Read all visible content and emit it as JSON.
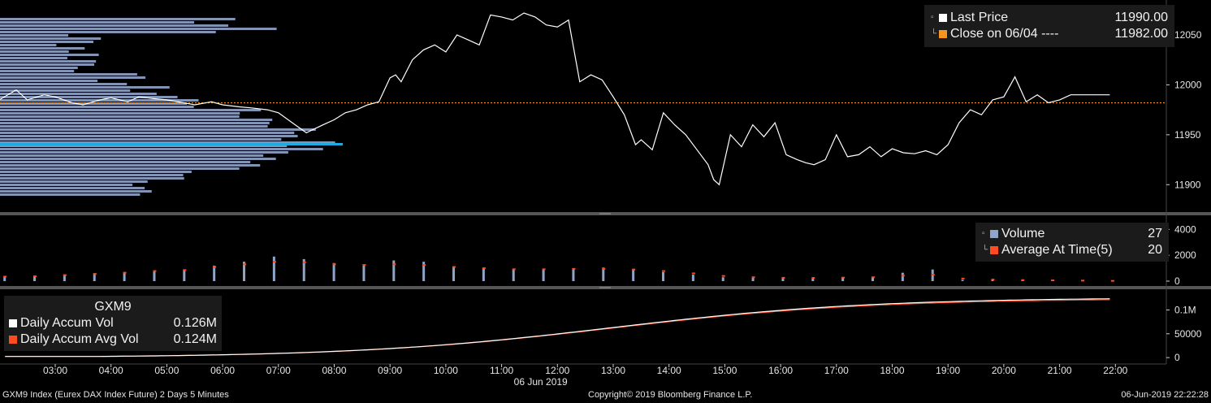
{
  "footer": {
    "left": "GXM9 Index (Eurex DAX Index Future) 2 Days 5 Minutes",
    "center": "Copyright© 2019 Bloomberg Finance L.P.",
    "right": "06-Jun-2019 22:22:28"
  },
  "legend_price": {
    "last_label": "Last Price",
    "last_value": "11990.00",
    "close_label": "Close on 06/04 ---- ",
    "close_value": "11982.00"
  },
  "legend_volume": {
    "vol_label": "Volume",
    "vol_value": "27",
    "avg_label": "Average At Time(5)",
    "avg_value": "20"
  },
  "legend_accum": {
    "title": "GXM9",
    "vol_label": "Daily Accum Vol",
    "vol_value": "0.126M",
    "avg_label": "Daily Accum Avg Vol",
    "avg_value": "0.124M"
  },
  "colors": {
    "last": "#ffffff",
    "close": "#f7941d",
    "volume": "#8ea4c8",
    "avg": "#ff4b1f",
    "profile": "#8a9bbd",
    "poc": "#1fa9e1"
  },
  "chart_data": [
    {
      "type": "line",
      "panel": "price",
      "ylim": [
        11875,
        12085
      ],
      "yticks": [
        11900,
        11950,
        12000,
        12050
      ],
      "close_reference": 11982,
      "x_tick_labels": [
        "03:00",
        "04:00",
        "05:00",
        "06:00",
        "07:00",
        "08:00",
        "09:00",
        "10:00",
        "11:00",
        "12:00",
        "13:00",
        "14:00",
        "15:00",
        "16:00",
        "17:00",
        "18:00",
        "19:00",
        "20:00",
        "21:00",
        "22:00"
      ],
      "date_label": "06 Jun 2019",
      "series": [
        {
          "name": "Last Price",
          "x": [
            2.0,
            2.3,
            2.5,
            2.8,
            3.0,
            3.3,
            3.5,
            3.8,
            4.0,
            4.3,
            4.5,
            4.8,
            5.0,
            5.3,
            5.5,
            5.8,
            6.0,
            6.3,
            6.5,
            6.8,
            7.0,
            7.3,
            7.5,
            7.8,
            8.0,
            8.2,
            8.4,
            8.6,
            8.8,
            9.0,
            9.1,
            9.2,
            9.4,
            9.6,
            9.8,
            10.0,
            10.2,
            10.4,
            10.6,
            10.8,
            11.0,
            11.2,
            11.4,
            11.6,
            11.8,
            12.0,
            12.2,
            12.4,
            12.6,
            12.8,
            13.0,
            13.2,
            13.4,
            13.5,
            13.7,
            13.9,
            14.1,
            14.3,
            14.5,
            14.7,
            14.8,
            14.9,
            15.1,
            15.3,
            15.5,
            15.7,
            15.9,
            16.1,
            16.3,
            16.45,
            16.6,
            16.8,
            17.0,
            17.2,
            17.4,
            17.6,
            17.8,
            18.0,
            18.2,
            18.4,
            18.6,
            18.8,
            19.0,
            19.2,
            19.4,
            19.6,
            19.8,
            20.0,
            20.2,
            20.4,
            20.6,
            20.8,
            21.0,
            21.2,
            21.4,
            21.6,
            21.75,
            21.9
          ],
          "values": [
            11985,
            11995,
            11985,
            11990,
            11988,
            11982,
            11980,
            11985,
            11987,
            11983,
            11988,
            11986,
            11985,
            11982,
            11980,
            11983,
            11980,
            11978,
            11977,
            11975,
            11972,
            11960,
            11952,
            11960,
            11965,
            11972,
            11975,
            11980,
            11983,
            12007,
            12010,
            12003,
            12025,
            12035,
            12040,
            12033,
            12050,
            12045,
            12040,
            12070,
            12068,
            12065,
            12072,
            12068,
            12060,
            12058,
            12065,
            12003,
            12010,
            12005,
            11988,
            11970,
            11940,
            11945,
            11935,
            11972,
            11960,
            11950,
            11935,
            11920,
            11905,
            11900,
            11950,
            11938,
            11960,
            11948,
            11962,
            11930,
            11925,
            11922,
            11920,
            11925,
            11950,
            11928,
            11930,
            11938,
            11928,
            11936,
            11932,
            11931,
            11934,
            11930,
            11940,
            11962,
            11975,
            11970,
            11985,
            11988,
            12008,
            11983,
            11990,
            11982,
            11985,
            11990,
            11990,
            11990,
            11990,
            11990
          ]
        },
        {
          "name": "Close on 06/04",
          "values": [
            11982
          ]
        }
      ]
    },
    {
      "type": "bar",
      "panel": "volume",
      "ylim": [
        0,
        4900
      ],
      "yticks": [
        0,
        2000,
        4000
      ],
      "series": [
        {
          "name": "Volume",
          "x_range": [
            2.1,
            21.95
          ],
          "values": [
            350,
            420,
            520,
            600,
            700,
            800,
            900,
            1200,
            1500,
            1900,
            1700,
            1400,
            1300,
            1600,
            1500,
            1100,
            1000,
            900,
            900,
            1000,
            1050,
            900,
            700,
            500,
            300,
            250,
            230,
            230,
            300,
            300,
            650,
            900,
            100,
            80,
            60,
            55,
            40,
            27
          ]
        },
        {
          "name": "Average At Time(5)",
          "x_range": [
            2.1,
            21.95
          ],
          "values": [
            350,
            380,
            460,
            560,
            650,
            780,
            860,
            1100,
            1300,
            1500,
            1450,
            1300,
            1250,
            1300,
            1250,
            1100,
            1000,
            920,
            920,
            950,
            950,
            900,
            780,
            600,
            400,
            300,
            260,
            250,
            270,
            300,
            420,
            500,
            200,
            120,
            80,
            60,
            40,
            20
          ]
        }
      ]
    },
    {
      "type": "line",
      "panel": "accumulated",
      "ylim": [
        -10000,
        140000
      ],
      "yticks": [
        "0",
        "50000",
        "0.1M"
      ],
      "series": [
        {
          "name": "Daily Accum Vol",
          "final_value": "0.126M"
        },
        {
          "name": "Daily Accum Avg Vol",
          "final_value": "0.124M"
        }
      ]
    }
  ]
}
